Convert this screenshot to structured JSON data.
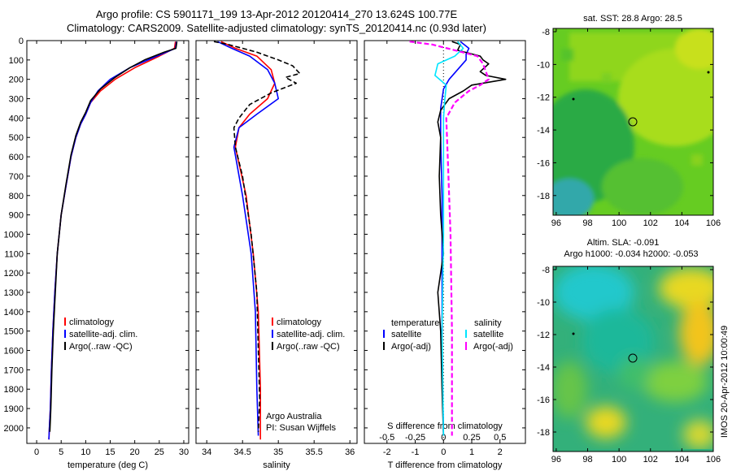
{
  "title_line1": "Argo profile: CS 5901171_199 13-Apr-2012 20120414_270 13.624S 100.77E",
  "title_line2": "Climatology: CARS2009. Satellite-adjusted climatology: synTS_20120414.nc (0.93d later)",
  "side_label": "IMOS 20-Apr-2012 10:00:49",
  "colors": {
    "climatology": "#ff0000",
    "satellite": "#0000ff",
    "argo": "#000000",
    "salinity_sat": "#00e5ff",
    "salinity_argo": "#ff00ff"
  },
  "chart_data": [
    {
      "type": "line",
      "panel": "temperature",
      "xlabel": "temperature (deg C)",
      "ylabel": "",
      "xlim": [
        -2,
        31
      ],
      "ylim": [
        2080,
        0
      ],
      "xticks": [
        0,
        5,
        10,
        15,
        20,
        25,
        30
      ],
      "yticks": [
        0,
        100,
        200,
        300,
        400,
        500,
        600,
        700,
        800,
        900,
        1000,
        1100,
        1200,
        1300,
        1400,
        1500,
        1600,
        1700,
        1800,
        1900,
        2000
      ],
      "legend": [
        "climatology",
        "satellite-adj. clim.",
        "Argo(..raw -QC)"
      ],
      "legend_position": "lower-center",
      "series": [
        {
          "name": "climatology",
          "color": "#ff0000",
          "x": [
            28.3,
            28.1,
            25,
            20,
            16,
            13,
            11,
            10,
            9,
            8,
            7,
            6,
            5,
            4.2,
            3.7,
            3.3,
            3.0,
            2.8,
            2.6,
            2.5
          ],
          "y": [
            5,
            40,
            80,
            140,
            200,
            260,
            320,
            380,
            430,
            500,
            600,
            750,
            900,
            1100,
            1300,
            1500,
            1700,
            1900,
            2000,
            2060
          ]
        },
        {
          "name": "satellite-adj. clim.",
          "color": "#0000ff",
          "x": [
            28.5,
            28.3,
            25,
            19,
            15,
            12.5,
            11,
            10,
            9,
            8,
            7,
            6,
            5,
            4.2,
            3.7,
            3.3,
            3.0,
            2.8,
            2.6,
            2.5
          ],
          "y": [
            5,
            40,
            75,
            140,
            200,
            260,
            320,
            380,
            430,
            500,
            600,
            750,
            900,
            1100,
            1300,
            1500,
            1700,
            1900,
            2000,
            2060
          ]
        },
        {
          "name": "Argo(..raw -QC)",
          "color": "#000000",
          "x": [
            28.6,
            28.4,
            26,
            22,
            19,
            16,
            13,
            11,
            10,
            9,
            8,
            7,
            6,
            5,
            4.2,
            3.8,
            3.4,
            3.1,
            2.9,
            2.7
          ],
          "y": [
            5,
            40,
            60,
            100,
            140,
            190,
            250,
            310,
            370,
            420,
            490,
            590,
            740,
            900,
            1100,
            1300,
            1500,
            1700,
            1900,
            2020
          ]
        }
      ]
    },
    {
      "type": "line",
      "panel": "salinity",
      "xlabel": "salinity",
      "xlim": [
        33.85,
        36.1
      ],
      "ylim": [
        2080,
        0
      ],
      "xticks": [
        34,
        34.5,
        35,
        35.5,
        36
      ],
      "legend": [
        "climatology",
        "satellite-adj. clim.",
        "Argo(..raw -QC)"
      ],
      "legend_position": "lower-center",
      "annotations": [
        "Argo Australia",
        "PI: Susan Wijffels"
      ],
      "series": [
        {
          "name": "climatology",
          "color": "#ff0000",
          "x": [
            34.2,
            34.4,
            34.7,
            34.9,
            34.95,
            34.85,
            34.6,
            34.45,
            34.4,
            34.55,
            34.65,
            34.72,
            34.75,
            34.75
          ],
          "y": [
            5,
            40,
            80,
            150,
            220,
            300,
            380,
            450,
            550,
            800,
            1100,
            1400,
            1800,
            2060
          ]
        },
        {
          "name": "satellite-adj. clim.",
          "color": "#0000ff",
          "x": [
            34.15,
            34.35,
            34.6,
            34.85,
            34.95,
            35.0,
            34.7,
            34.45,
            34.38,
            34.5,
            34.62,
            34.68,
            34.7,
            34.72
          ],
          "y": [
            5,
            40,
            80,
            150,
            220,
            300,
            380,
            450,
            550,
            800,
            1100,
            1400,
            1800,
            2040
          ]
        },
        {
          "name": "Argo(..raw -QC)",
          "color": "#000000",
          "x": [
            34.1,
            34.3,
            34.5,
            34.7,
            35.0,
            35.2,
            35.3,
            35.1,
            35.25,
            34.9,
            34.6,
            34.45,
            34.38,
            34.4,
            34.5,
            34.62,
            34.7,
            34.72,
            34.74,
            34.72
          ],
          "y": [
            5,
            20,
            40,
            60,
            100,
            130,
            170,
            190,
            220,
            270,
            330,
            400,
            450,
            550,
            700,
            1000,
            1300,
            1600,
            1850,
            2020
          ]
        }
      ]
    },
    {
      "type": "line",
      "panel": "difference",
      "xlabel": "T difference from climatology",
      "xlabel_top": "S difference from climatology",
      "xlim": [
        -2.8,
        2.9
      ],
      "ylim": [
        2080,
        0
      ],
      "xticks": [
        -2,
        -1,
        0,
        1,
        2
      ],
      "xticks_top": [
        -0.5,
        -0.25,
        0,
        0.25,
        0.5
      ],
      "legend_temperature_title": "temperature",
      "legend_salinity_title": "salinity",
      "legend_temperature": [
        "satellite",
        "Argo(-adj)"
      ],
      "legend_salinity": [
        "satellite",
        "Argo(-adj)"
      ],
      "series": [
        {
          "name": "temperature satellite",
          "color": "#0000ff",
          "x": [
            0.6,
            0.9,
            0.8,
            0.8,
            0.5,
            0.2,
            0,
            -0.1,
            -0.1,
            -0.05,
            -0.05,
            -0.05,
            0
          ],
          "y": [
            5,
            40,
            70,
            100,
            150,
            200,
            250,
            350,
            500,
            800,
            1200,
            1600,
            2040
          ]
        },
        {
          "name": "temperature Argo(-adj)",
          "color": "#000000",
          "x": [
            0.3,
            0.6,
            0.5,
            1.3,
            1.4,
            1.6,
            1.3,
            1.5,
            2.2,
            1.0,
            0.7,
            0.2,
            -0.1,
            -0.2,
            -0.1,
            -0.15,
            -0.1,
            0,
            -0.2,
            -0.1,
            -0.05,
            0
          ],
          "y": [
            5,
            20,
            50,
            80,
            100,
            120,
            160,
            180,
            200,
            230,
            260,
            300,
            360,
            420,
            500,
            700,
            900,
            1100,
            1300,
            1500,
            1800,
            2040
          ]
        },
        {
          "name": "salinity satellite",
          "color": "#00e5ff",
          "x": [
            0.5,
            0.7,
            0.4,
            -0.2,
            -0.3,
            0.1,
            0.05,
            0.0,
            0,
            0,
            -0.05,
            0
          ],
          "y": [
            5,
            40,
            80,
            120,
            180,
            230,
            300,
            400,
            600,
            1000,
            1500,
            2040
          ]
        },
        {
          "name": "salinity Argo(-adj)",
          "color": "#ff00ff",
          "x": [
            -1.2,
            -0.4,
            0.4,
            1.2,
            1.4,
            1.6,
            1.3,
            0.9,
            0.4,
            0.1,
            0.15,
            0.25,
            0.3,
            0.3
          ],
          "y": [
            5,
            20,
            50,
            80,
            120,
            200,
            230,
            260,
            320,
            400,
            600,
            1000,
            1500,
            2040
          ]
        }
      ]
    },
    {
      "type": "heatmap",
      "panel": "sst_map",
      "title": "sat. SST: 28.8  Argo: 28.5",
      "xlim": [
        95.8,
        106
      ],
      "ylim": [
        -19.2,
        -7.8
      ],
      "xticks": [
        96,
        98,
        100,
        102,
        104,
        106
      ],
      "yticks": [
        -8,
        -10,
        -12,
        -14,
        -16,
        -18
      ],
      "profile_position": {
        "lon": 100.77,
        "lat": -13.62
      }
    },
    {
      "type": "heatmap",
      "panel": "sla_map",
      "title_line1": "Altim. SLA: -0.091",
      "title_line2": "Argo h1000: -0.034 h2000: -0.053",
      "xlim": [
        95.8,
        106
      ],
      "ylim": [
        -19.2,
        -7.8
      ],
      "xticks": [
        96,
        98,
        100,
        102,
        104,
        106
      ],
      "yticks": [
        -8,
        -10,
        -12,
        -14,
        -16,
        -18
      ],
      "profile_position": {
        "lon": 100.77,
        "lat": -13.62
      }
    }
  ]
}
